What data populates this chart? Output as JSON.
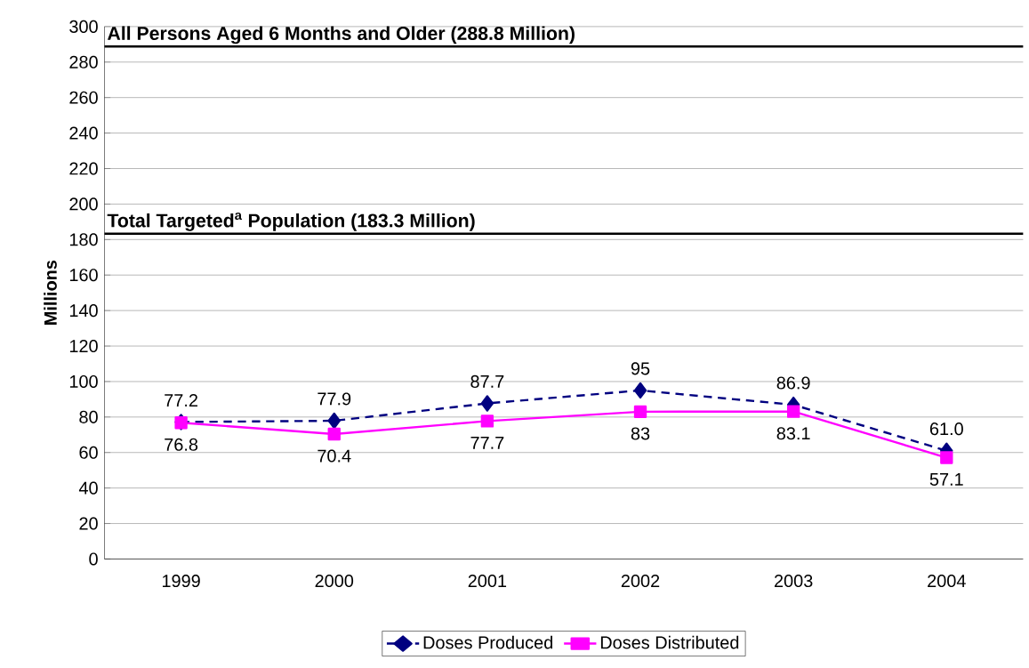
{
  "chart_data": {
    "type": "line",
    "categories": [
      "1999",
      "2000",
      "2001",
      "2002",
      "2003",
      "2004"
    ],
    "ylabel": "Millions",
    "ylim": [
      0,
      300
    ],
    "yticks": [
      0,
      20,
      40,
      60,
      80,
      100,
      120,
      140,
      160,
      180,
      200,
      220,
      240,
      260,
      280,
      300
    ],
    "grid": "y",
    "legend": "bottom",
    "series": [
      {
        "name": "Doses Produced",
        "color": "#000080",
        "marker": "diamond",
        "line_style": "dashed",
        "values": [
          77.2,
          77.9,
          87.7,
          95,
          86.9,
          61.0
        ],
        "value_labels": [
          "77.2",
          "77.9",
          "87.7",
          "95",
          "86.9",
          "61.0"
        ]
      },
      {
        "name": "Doses Distributed",
        "color": "#ff00ff",
        "marker": "square",
        "line_style": "solid",
        "values": [
          76.8,
          70.4,
          77.7,
          83,
          83.1,
          57.1
        ],
        "value_labels": [
          "76.8",
          "70.4",
          "77.7",
          "83",
          "83.1",
          "57.1"
        ]
      }
    ],
    "ref_lines": [
      {
        "axis": "y",
        "value": 288.8,
        "label": "All Persons Aged 6 Months and Older (288.8 Million)",
        "color": "#000000"
      },
      {
        "axis": "y",
        "value": 183.3,
        "label": "Total Targeted$^{a}$ Population (183.3 Million)",
        "color": "#000000"
      }
    ]
  }
}
